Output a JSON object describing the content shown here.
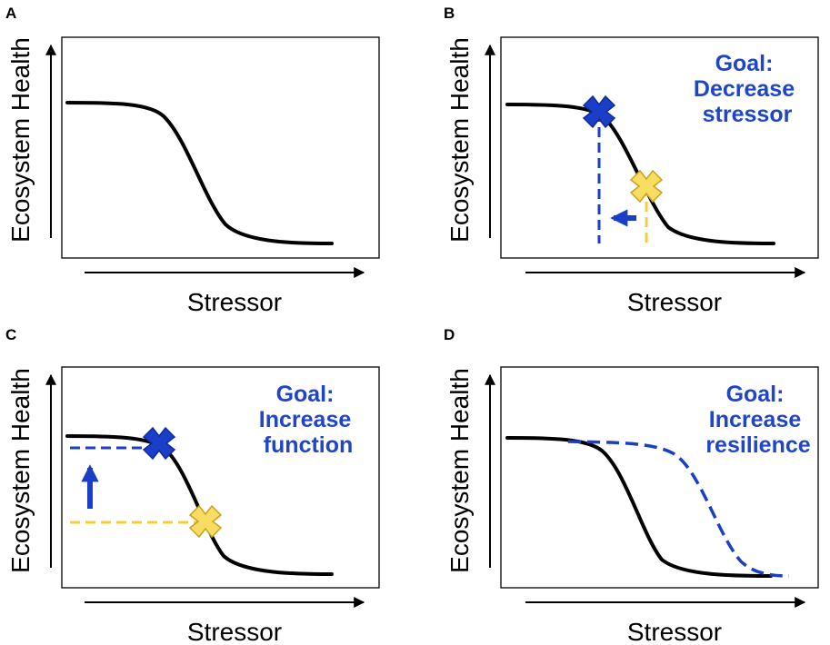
{
  "colors": {
    "blue": "#1a3ec8",
    "goal_text": "#1f45c8",
    "yellow": "#f6cd38",
    "yellow_fill": "#f9dd62",
    "yellow_stroke": "#caa21a",
    "black": "#000000"
  },
  "icons": [
    "arrow-up-icon",
    "arrow-right-icon",
    "arrow-left-icon",
    "cross-marker-icon"
  ],
  "panels": [
    {
      "letter": "A",
      "ylabel": "Ecosystem Health",
      "xlabel": "Stressor"
    },
    {
      "letter": "B",
      "ylabel": "Ecosystem Health",
      "xlabel": "Stressor",
      "goal": [
        "Goal:",
        "Decrease",
        "stressor"
      ]
    },
    {
      "letter": "C",
      "ylabel": "Ecosystem Health",
      "xlabel": "Stressor",
      "goal": [
        "Goal:",
        "Increase",
        "function"
      ]
    },
    {
      "letter": "D",
      "ylabel": "Ecosystem Health",
      "xlabel": "Stressor",
      "goal": [
        "Goal:",
        "Increase",
        "resilience"
      ]
    }
  ]
}
